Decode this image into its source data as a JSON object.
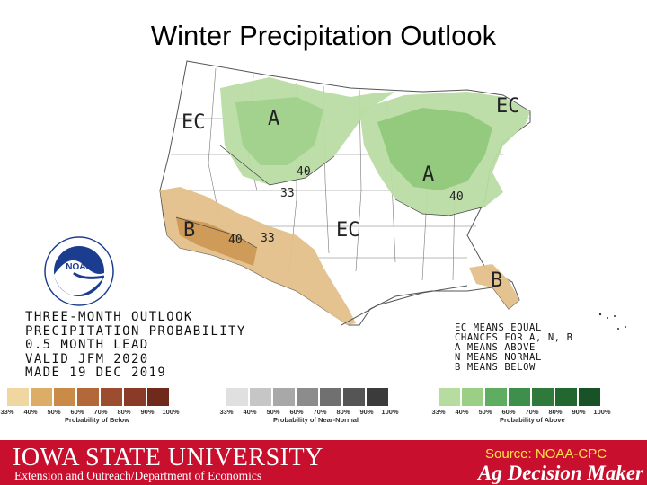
{
  "title": "Winter Precipitation Outlook",
  "map_labels": {
    "ec_west": "EC",
    "ec_northeast": "EC",
    "ec_south": "EC",
    "a_north": "A",
    "a_east": "A",
    "b_west": "B",
    "b_florida": "B",
    "contour_40_north": "40",
    "contour_33_north": "33",
    "contour_40_east": "40",
    "contour_40_west": "40",
    "contour_33_west": "33"
  },
  "outlook_text": [
    "THREE-MONTH OUTLOOK",
    "PRECIPITATION PROBABILITY",
    "0.5 MONTH LEAD",
    "VALID JFM 2020",
    "MADE 19 DEC 2019"
  ],
  "legend_text": [
    "EC MEANS EQUAL",
    "CHANCES FOR A, N, B",
    "A MEANS ABOVE",
    "N MEANS NORMAL",
    "B MEANS BELOW"
  ],
  "scales": {
    "below": {
      "caption": "Probability of Below",
      "ticks": [
        "33%",
        "40%",
        "50%",
        "60%",
        "70%",
        "80%",
        "90%",
        "100%"
      ],
      "colors": [
        "#f0d6a0",
        "#dcad66",
        "#c98b47",
        "#b3683a",
        "#9c4c2f",
        "#8a3a26",
        "#6f2a1c"
      ]
    },
    "normal": {
      "caption": "Probability of Near-Normal",
      "ticks": [
        "33%",
        "40%",
        "50%",
        "60%",
        "70%",
        "80%",
        "90%",
        "100%"
      ],
      "colors": [
        "#e0e0e0",
        "#c6c6c6",
        "#a8a8a8",
        "#8c8c8c",
        "#707070",
        "#555555",
        "#3b3b3b"
      ]
    },
    "above": {
      "caption": "Probability of Above",
      "ticks": [
        "33%",
        "40%",
        "50%",
        "60%",
        "70%",
        "80%",
        "90%",
        "100%"
      ],
      "colors": [
        "#b7dca0",
        "#9ccf86",
        "#5fad60",
        "#3d8f4b",
        "#2f7a3a",
        "#226630",
        "#185226"
      ]
    }
  },
  "colors": {
    "above_light": "#b9dca4",
    "above_dark": "#8ec878",
    "below_light": "#e3c08a",
    "below_dark": "#cc9a55",
    "footer_red": "#c8102e",
    "source_yellow": "#ffe24a"
  },
  "footer": {
    "university": "IOWA STATE UNIVERSITY",
    "department": "Extension and Outreach/Department of Economics",
    "source": "Source: NOAA-CPC",
    "brand": "Ag Decision Maker"
  },
  "logo_text": "NATIONAL OCEANIC AND ATMOSPHERIC ADMINISTRATION · U.S. DEPARTMENT OF COMMERCE",
  "logo_center": "NOAA"
}
